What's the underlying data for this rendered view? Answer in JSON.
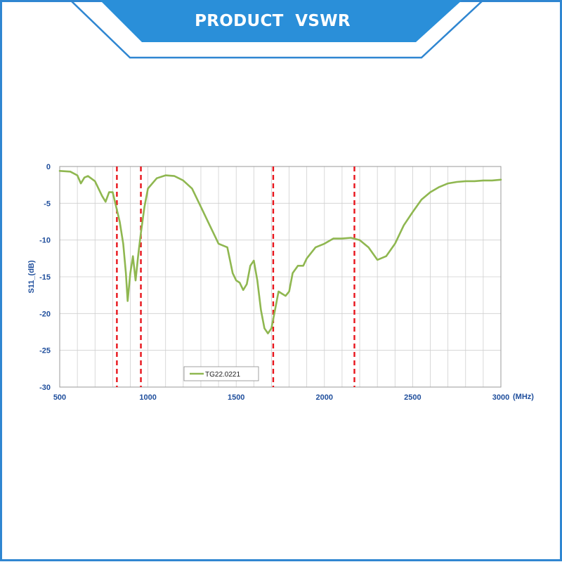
{
  "header": {
    "title": "PRODUCT  VSWR"
  },
  "colors": {
    "frame": "#2f86d1",
    "banner": "#2a8fd9",
    "curve": "#8fb750",
    "markers": "#e8141b",
    "grid": "#cfcfcf",
    "axis_text": "#1f4e9c"
  },
  "chart_data": {
    "type": "line",
    "xlabel": "(MHz)",
    "ylabel": "S11_(dB)",
    "xlim": [
      500,
      3000
    ],
    "ylim": [
      -30,
      0
    ],
    "x_ticks": [
      500,
      1000,
      1500,
      2000,
      2500,
      3000
    ],
    "y_ticks": [
      0,
      -5,
      -10,
      -15,
      -20,
      -25,
      -30
    ],
    "x_tick_labels": [
      "500",
      "1000",
      "1500",
      "2000",
      "2500",
      "3000"
    ],
    "y_tick_labels": [
      "0",
      "-5",
      "-10",
      "-15",
      "-20",
      "-25",
      "-30"
    ],
    "grid": true,
    "legend_position": "bottom-left",
    "vertical_markers": [
      824,
      960,
      1710,
      2170
    ],
    "series": [
      {
        "name": "TG22.0221",
        "x": [
          500,
          560,
          600,
          620,
          640,
          660,
          700,
          740,
          760,
          780,
          800,
          820,
          840,
          860,
          875,
          885,
          900,
          915,
          930,
          945,
          960,
          980,
          1000,
          1050,
          1100,
          1150,
          1200,
          1250,
          1300,
          1350,
          1380,
          1400,
          1450,
          1480,
          1500,
          1520,
          1540,
          1560,
          1580,
          1600,
          1620,
          1640,
          1660,
          1680,
          1700,
          1720,
          1740,
          1760,
          1780,
          1800,
          1820,
          1850,
          1880,
          1900,
          1950,
          2000,
          2050,
          2100,
          2150,
          2200,
          2250,
          2300,
          2350,
          2400,
          2450,
          2500,
          2550,
          2600,
          2650,
          2700,
          2750,
          2800,
          2850,
          2900,
          2950,
          3000
        ],
        "y": [
          -0.6,
          -0.7,
          -1.2,
          -2.3,
          -1.5,
          -1.3,
          -2.0,
          -4.0,
          -4.8,
          -3.5,
          -3.5,
          -5.5,
          -7.5,
          -10.5,
          -14.5,
          -18.3,
          -14.5,
          -12.2,
          -15.5,
          -12.0,
          -9.0,
          -5.5,
          -3.0,
          -1.6,
          -1.2,
          -1.3,
          -1.9,
          -3.0,
          -5.5,
          -8.0,
          -9.5,
          -10.5,
          -11.0,
          -14.5,
          -15.5,
          -15.8,
          -16.8,
          -16.0,
          -13.5,
          -12.8,
          -15.5,
          -19.5,
          -22.0,
          -22.7,
          -22.0,
          -19.5,
          -17.0,
          -17.3,
          -17.6,
          -17.0,
          -14.5,
          -13.5,
          -13.5,
          -12.5,
          -11.0,
          -10.5,
          -9.8,
          -9.8,
          -9.7,
          -10.0,
          -11.0,
          -12.7,
          -12.2,
          -10.5,
          -8.0,
          -6.2,
          -4.5,
          -3.5,
          -2.8,
          -2.3,
          -2.1,
          -2.0,
          -2.0,
          -1.9,
          -1.9,
          -1.8
        ]
      }
    ]
  }
}
